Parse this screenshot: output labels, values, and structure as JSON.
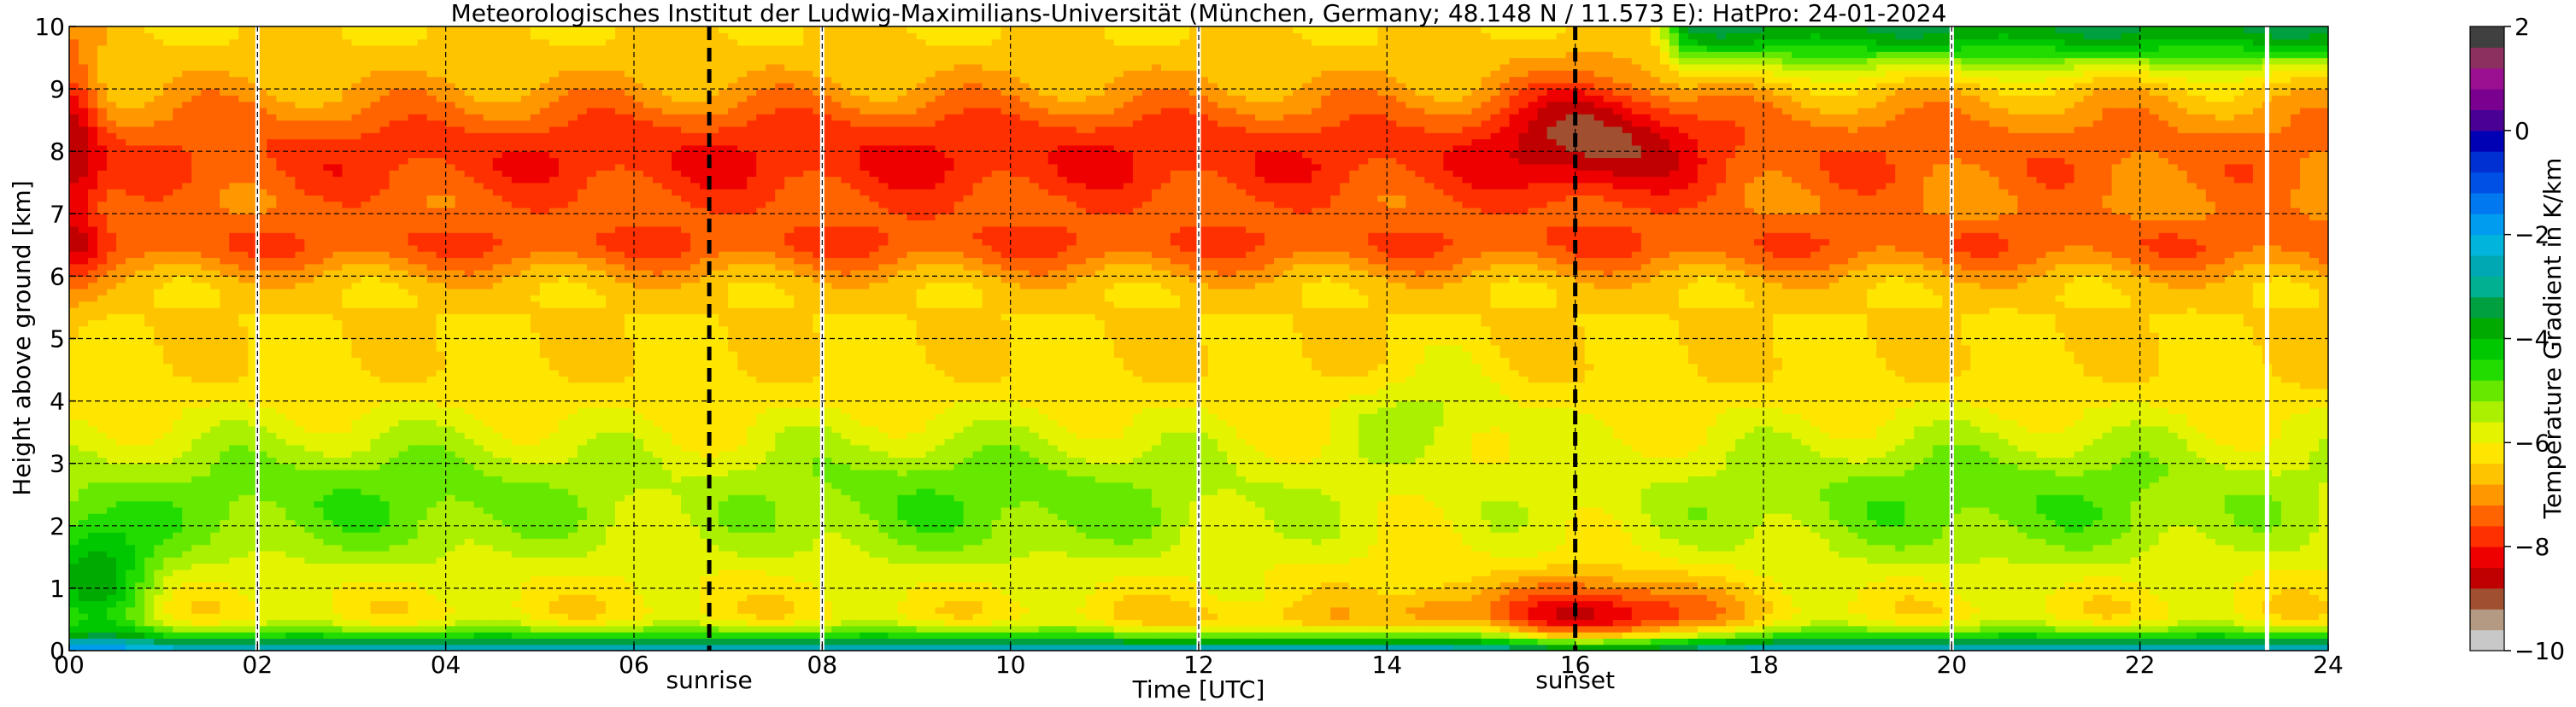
{
  "chart_data": {
    "type": "heatmap",
    "title": "Meteorologisches Institut der Ludwig-Maximilians-Universität (München, Germany; 48.148 N / 11.573 E):    HatPro: 24-01-2024",
    "xlabel": "Time [UTC]",
    "ylabel": "Height above ground [km]",
    "xlim": [
      0,
      24
    ],
    "ylim": [
      0,
      10
    ],
    "x_ticks": [
      "00",
      "02",
      "04",
      "06",
      "08",
      "10",
      "12",
      "14",
      "16",
      "18",
      "20",
      "22",
      "24"
    ],
    "y_ticks": [
      "0",
      "1",
      "2",
      "3",
      "4",
      "5",
      "6",
      "7",
      "8",
      "9",
      "10"
    ],
    "grid": true,
    "annotations": [
      {
        "label": "sunrise",
        "x": 6.8
      },
      {
        "label": "sunset",
        "x": 16.0
      }
    ],
    "gaps_white_lines": [
      2.0,
      8.0,
      12.0,
      20.0,
      23.35
    ],
    "colorbar": {
      "label": "Temperature Gradient in K/km",
      "range": [
        -10,
        2
      ],
      "ticks": [
        "−10",
        "−8",
        "−6",
        "−4",
        "−2",
        "0",
        "2"
      ],
      "colors": [
        {
          "v": -10.0,
          "c": "#c8c8c8"
        },
        {
          "v": -9.6,
          "c": "#b49a82"
        },
        {
          "v": -9.2,
          "c": "#a05030"
        },
        {
          "v": -8.8,
          "c": "#c00000"
        },
        {
          "v": -8.4,
          "c": "#ee0000"
        },
        {
          "v": -8.0,
          "c": "#ff3000"
        },
        {
          "v": -7.6,
          "c": "#ff6400"
        },
        {
          "v": -7.2,
          "c": "#ff9800"
        },
        {
          "v": -6.8,
          "c": "#ffc400"
        },
        {
          "v": -6.4,
          "c": "#ffe600"
        },
        {
          "v": -6.0,
          "c": "#e4f400"
        },
        {
          "v": -5.6,
          "c": "#aaf000"
        },
        {
          "v": -5.2,
          "c": "#66e800"
        },
        {
          "v": -4.8,
          "c": "#22dc00"
        },
        {
          "v": -4.4,
          "c": "#00c800"
        },
        {
          "v": -4.0,
          "c": "#00aa00"
        },
        {
          "v": -3.6,
          "c": "#00a040"
        },
        {
          "v": -3.2,
          "c": "#00b090"
        },
        {
          "v": -2.8,
          "c": "#00a8b4"
        },
        {
          "v": -2.4,
          "c": "#00b4dc"
        },
        {
          "v": -2.0,
          "c": "#009cf0"
        },
        {
          "v": -1.6,
          "c": "#0078f0"
        },
        {
          "v": -1.2,
          "c": "#0050e6"
        },
        {
          "v": -0.8,
          "c": "#0030d2"
        },
        {
          "v": -0.4,
          "c": "#0000b4"
        },
        {
          "v": 0.0,
          "c": "#4a0094"
        },
        {
          "v": 0.4,
          "c": "#7a0090"
        },
        {
          "v": 0.8,
          "c": "#9a1090"
        },
        {
          "v": 1.2,
          "c": "#8c3060"
        },
        {
          "v": 1.6,
          "c": "#404040"
        },
        {
          "v": 2.0,
          "c": "#000000"
        }
      ]
    }
  }
}
